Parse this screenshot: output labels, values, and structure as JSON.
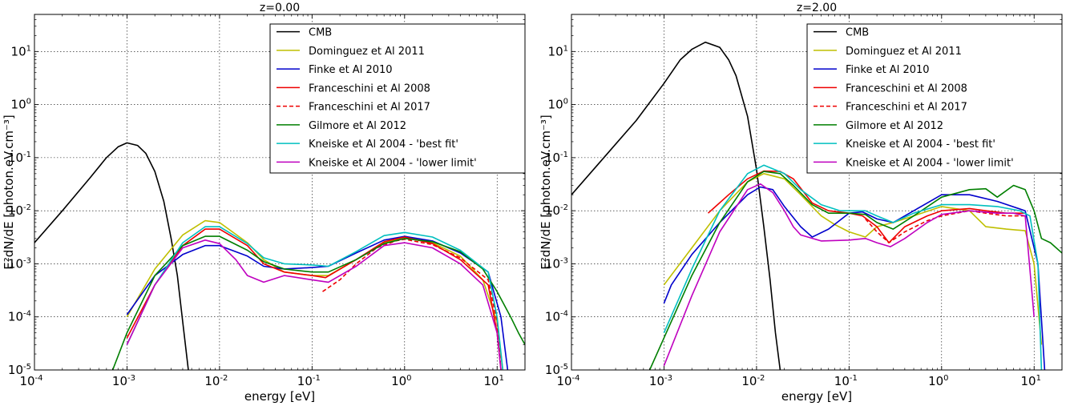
{
  "chart_data": [
    {
      "type": "line",
      "title": "z=0.00",
      "xlabel": "energy [eV]",
      "ylabel": "E²dN/dE [photon.eV.cm⁻³]",
      "xscale": "log",
      "yscale": "log",
      "xlim": [
        0.0001,
        20
      ],
      "ylim": [
        1e-05,
        50
      ],
      "grid": true,
      "legend": "top-right",
      "xticks": [
        {
          "value": 0.0001,
          "base": "10",
          "exp": "-4"
        },
        {
          "value": 0.001,
          "base": "10",
          "exp": "-3"
        },
        {
          "value": 0.01,
          "base": "10",
          "exp": "-2"
        },
        {
          "value": 0.1,
          "base": "10",
          "exp": "-1"
        },
        {
          "value": 1,
          "base": "10",
          "exp": "0"
        },
        {
          "value": 10,
          "base": "10",
          "exp": "1"
        }
      ],
      "yticks": [
        {
          "value": 1e-05,
          "base": "10",
          "exp": "-5"
        },
        {
          "value": 0.0001,
          "base": "10",
          "exp": "-4"
        },
        {
          "value": 0.001,
          "base": "10",
          "exp": "-3"
        },
        {
          "value": 0.01,
          "base": "10",
          "exp": "-2"
        },
        {
          "value": 0.1,
          "base": "10",
          "exp": "-1"
        },
        {
          "value": 1,
          "base": "10",
          "exp": "0"
        },
        {
          "value": 10,
          "base": "10",
          "exp": "1"
        }
      ],
      "series": [
        {
          "name": "CMB",
          "color": "#000000",
          "dash": false,
          "x": [
            0.0001,
            0.0002,
            0.0004,
            0.0006,
            0.0008,
            0.001,
            0.0013,
            0.0016,
            0.002,
            0.0025,
            0.003,
            0.0035,
            0.004,
            0.0046
          ],
          "y": [
            0.0025,
            0.01,
            0.042,
            0.1,
            0.16,
            0.19,
            0.17,
            0.12,
            0.055,
            0.015,
            0.003,
            0.0006,
            8e-05,
            1e-05
          ]
        },
        {
          "name": "Dominguez et Al 2011",
          "color": "#bfbf00",
          "dash": false,
          "x": [
            0.001,
            0.002,
            0.004,
            0.007,
            0.01,
            0.02,
            0.03,
            0.05,
            0.1,
            0.15,
            0.3,
            0.6,
            1,
            2,
            4,
            7,
            10,
            11.5
          ],
          "y": [
            0.0001,
            0.0008,
            0.0035,
            0.0065,
            0.006,
            0.0025,
            0.0012,
            0.0007,
            0.0006,
            0.0006,
            0.0012,
            0.0025,
            0.0032,
            0.0025,
            0.0014,
            0.0005,
            8e-05,
            1e-05
          ]
        },
        {
          "name": "Finke et Al 2010",
          "color": "#0000cc",
          "dash": false,
          "x": [
            0.001,
            0.002,
            0.004,
            0.007,
            0.01,
            0.02,
            0.03,
            0.05,
            0.1,
            0.15,
            0.3,
            0.6,
            1,
            2,
            4,
            8,
            11,
            13
          ],
          "y": [
            0.00011,
            0.0006,
            0.0015,
            0.0022,
            0.0022,
            0.0014,
            0.0009,
            0.0008,
            0.00085,
            0.0009,
            0.0016,
            0.0028,
            0.0033,
            0.0027,
            0.0016,
            0.0007,
            0.0001,
            1e-05
          ]
        },
        {
          "name": "Franceschini et Al 2008",
          "color": "#ee0000",
          "dash": false,
          "x": [
            0.001,
            0.002,
            0.004,
            0.007,
            0.01,
            0.02,
            0.03,
            0.05,
            0.1,
            0.14,
            0.3,
            0.6,
            1,
            2,
            4,
            8,
            10,
            11
          ],
          "y": [
            4e-05,
            0.0004,
            0.0022,
            0.0045,
            0.0045,
            0.0022,
            0.001,
            0.0007,
            0.0006,
            0.00055,
            0.0012,
            0.0026,
            0.0032,
            0.0024,
            0.0012,
            0.0004,
            5e-05,
            1e-05
          ]
        },
        {
          "name": "Franceschini et Al 2017",
          "color": "#ee0000",
          "dash": true,
          "x": [
            0.13,
            0.2,
            0.3,
            0.5,
            0.8,
            1,
            2,
            4,
            8,
            10,
            11
          ],
          "y": [
            0.0003,
            0.0005,
            0.001,
            0.002,
            0.0027,
            0.0029,
            0.0023,
            0.0013,
            0.0005,
            8e-05,
            1e-05
          ]
        },
        {
          "name": "Gilmore et Al 2012",
          "color": "#007f00",
          "dash": false,
          "x": [
            0.0007,
            0.001,
            0.002,
            0.004,
            0.007,
            0.01,
            0.02,
            0.03,
            0.05,
            0.1,
            0.15,
            0.3,
            0.6,
            1,
            2,
            4,
            7,
            10,
            14,
            17,
            20
          ],
          "y": [
            1e-05,
            5e-05,
            0.0006,
            0.0022,
            0.0033,
            0.0033,
            0.0018,
            0.0011,
            0.0008,
            0.0007,
            0.0007,
            0.0012,
            0.0024,
            0.003,
            0.0026,
            0.0017,
            0.0008,
            0.0003,
            0.0001,
            5e-05,
            3e-05
          ]
        },
        {
          "name": "Kneiske et Al 2004 - 'best fit'",
          "color": "#00bfbf",
          "dash": false,
          "x": [
            0.001,
            0.002,
            0.004,
            0.007,
            0.01,
            0.02,
            0.03,
            0.05,
            0.1,
            0.15,
            0.3,
            0.6,
            1,
            2,
            4,
            8,
            10,
            11.5
          ],
          "y": [
            3e-05,
            0.0004,
            0.0025,
            0.005,
            0.005,
            0.0024,
            0.0013,
            0.001,
            0.00095,
            0.0009,
            0.0017,
            0.0034,
            0.0039,
            0.0032,
            0.0018,
            0.0007,
            0.0001,
            1e-05
          ]
        },
        {
          "name": "Kneiske et Al 2004 - 'lower limit'",
          "color": "#bf00bf",
          "dash": false,
          "x": [
            0.001,
            0.002,
            0.004,
            0.007,
            0.01,
            0.015,
            0.02,
            0.03,
            0.05,
            0.1,
            0.15,
            0.3,
            0.6,
            1,
            2,
            4,
            7,
            10,
            11
          ],
          "y": [
            3e-05,
            0.0004,
            0.002,
            0.0028,
            0.0024,
            0.0012,
            0.0006,
            0.00045,
            0.0006,
            0.0005,
            0.00045,
            0.0009,
            0.0022,
            0.0025,
            0.002,
            0.001,
            0.0004,
            5e-05,
            1e-05
          ]
        }
      ]
    },
    {
      "type": "line",
      "title": "z=2.00",
      "xlabel": "energy [eV]",
      "ylabel": "E²dN/dE [photon.eV.cm⁻³]",
      "xscale": "log",
      "yscale": "log",
      "xlim": [
        0.0001,
        20
      ],
      "ylim": [
        1e-05,
        50
      ],
      "grid": true,
      "legend": "top-right",
      "xticks": [
        {
          "value": 0.0001,
          "base": "10",
          "exp": "-4"
        },
        {
          "value": 0.001,
          "base": "10",
          "exp": "-3"
        },
        {
          "value": 0.01,
          "base": "10",
          "exp": "-2"
        },
        {
          "value": 0.1,
          "base": "10",
          "exp": "-1"
        },
        {
          "value": 1,
          "base": "10",
          "exp": "0"
        },
        {
          "value": 10,
          "base": "10",
          "exp": "1"
        }
      ],
      "yticks": [
        {
          "value": 1e-05,
          "base": "10",
          "exp": "-5"
        },
        {
          "value": 0.0001,
          "base": "10",
          "exp": "-4"
        },
        {
          "value": 0.001,
          "base": "10",
          "exp": "-3"
        },
        {
          "value": 0.01,
          "base": "10",
          "exp": "-2"
        },
        {
          "value": 0.1,
          "base": "10",
          "exp": "-1"
        },
        {
          "value": 1,
          "base": "10",
          "exp": "0"
        },
        {
          "value": 10,
          "base": "10",
          "exp": "1"
        }
      ],
      "series": [
        {
          "name": "CMB",
          "color": "#000000",
          "dash": false,
          "x": [
            0.0001,
            0.0002,
            0.0005,
            0.001,
            0.0015,
            0.002,
            0.0028,
            0.004,
            0.005,
            0.006,
            0.008,
            0.01,
            0.012,
            0.014,
            0.016,
            0.018
          ],
          "y": [
            0.02,
            0.08,
            0.5,
            2.5,
            7,
            11,
            15,
            12,
            7,
            3.5,
            0.6,
            0.06,
            0.005,
            0.0005,
            5e-05,
            1e-05
          ]
        },
        {
          "name": "Dominguez et Al 2011",
          "color": "#bfbf00",
          "dash": false,
          "x": [
            0.001,
            0.002,
            0.004,
            0.008,
            0.012,
            0.02,
            0.03,
            0.05,
            0.07,
            0.1,
            0.15,
            0.2,
            0.3,
            0.5,
            1,
            2,
            3,
            5,
            8,
            10,
            12
          ],
          "y": [
            0.0004,
            0.002,
            0.01,
            0.035,
            0.05,
            0.04,
            0.02,
            0.008,
            0.0055,
            0.004,
            0.0032,
            0.005,
            0.006,
            0.008,
            0.012,
            0.01,
            0.005,
            0.0045,
            0.0042,
            0.001,
            3e-05
          ]
        },
        {
          "name": "Finke et Al 2010",
          "color": "#0000cc",
          "dash": false,
          "x": [
            0.001,
            0.0012,
            0.002,
            0.004,
            0.008,
            0.011,
            0.015,
            0.02,
            0.03,
            0.04,
            0.06,
            0.1,
            0.14,
            0.2,
            0.3,
            0.5,
            1,
            2,
            4,
            8,
            11,
            13
          ],
          "y": [
            0.00018,
            0.0004,
            0.0015,
            0.006,
            0.02,
            0.028,
            0.025,
            0.012,
            0.005,
            0.0032,
            0.0045,
            0.009,
            0.0095,
            0.007,
            0.006,
            0.01,
            0.02,
            0.02,
            0.015,
            0.01,
            0.001,
            1e-05
          ]
        },
        {
          "name": "Franceschini et Al 2008",
          "color": "#ee0000",
          "dash": false,
          "x": [
            0.003,
            0.005,
            0.008,
            0.012,
            0.018,
            0.025,
            0.04,
            0.06,
            0.1,
            0.14,
            0.2,
            0.27,
            0.4,
            0.7,
            1,
            2,
            3,
            5,
            8
          ],
          "y": [
            0.009,
            0.02,
            0.04,
            0.056,
            0.055,
            0.04,
            0.014,
            0.01,
            0.009,
            0.008,
            0.005,
            0.0025,
            0.005,
            0.008,
            0.01,
            0.011,
            0.01,
            0.009,
            0.009
          ]
        },
        {
          "name": "Franceschini et Al 2017",
          "color": "#ee0000",
          "dash": true,
          "x": [
            0.15,
            0.2,
            0.27,
            0.4,
            0.7,
            1,
            2,
            3,
            5,
            8
          ],
          "y": [
            0.007,
            0.004,
            0.0025,
            0.004,
            0.0065,
            0.008,
            0.01,
            0.009,
            0.008,
            0.008
          ]
        },
        {
          "name": "Gilmore et Al 2012",
          "color": "#007f00",
          "dash": false,
          "x": [
            0.0007,
            0.001,
            0.002,
            0.004,
            0.008,
            0.012,
            0.018,
            0.025,
            0.04,
            0.06,
            0.1,
            0.15,
            0.2,
            0.3,
            0.5,
            1,
            2,
            3,
            4,
            6,
            8,
            10,
            12,
            15,
            20
          ],
          "y": [
            1e-05,
            4e-05,
            0.0006,
            0.006,
            0.035,
            0.055,
            0.05,
            0.03,
            0.013,
            0.009,
            0.009,
            0.0085,
            0.006,
            0.0045,
            0.008,
            0.018,
            0.025,
            0.026,
            0.018,
            0.03,
            0.025,
            0.01,
            0.003,
            0.0025,
            0.0016
          ]
        },
        {
          "name": "Kneiske et Al 2004 - 'best fit'",
          "color": "#00bfbf",
          "dash": false,
          "x": [
            0.001,
            0.002,
            0.004,
            0.008,
            0.012,
            0.02,
            0.03,
            0.05,
            0.08,
            0.12,
            0.15,
            0.2,
            0.3,
            0.5,
            1,
            2,
            4,
            7,
            9,
            11,
            12
          ],
          "y": [
            5e-05,
            0.0008,
            0.01,
            0.05,
            0.072,
            0.05,
            0.025,
            0.013,
            0.01,
            0.01,
            0.01,
            0.008,
            0.006,
            0.009,
            0.013,
            0.013,
            0.012,
            0.01,
            0.008,
            0.001,
            1e-05
          ]
        },
        {
          "name": "Kneiske et Al 2004 - 'lower limit'",
          "color": "#bf00bf",
          "dash": false,
          "x": [
            0.001,
            0.002,
            0.004,
            0.008,
            0.011,
            0.015,
            0.02,
            0.025,
            0.03,
            0.05,
            0.1,
            0.15,
            0.2,
            0.28,
            0.4,
            0.7,
            1,
            2,
            4,
            6,
            8,
            10
          ],
          "y": [
            1.2e-05,
            0.00025,
            0.004,
            0.025,
            0.032,
            0.022,
            0.01,
            0.005,
            0.0035,
            0.0027,
            0.0028,
            0.003,
            0.0025,
            0.0021,
            0.003,
            0.006,
            0.0085,
            0.01,
            0.009,
            0.009,
            0.008,
            0.0001
          ]
        }
      ]
    }
  ]
}
